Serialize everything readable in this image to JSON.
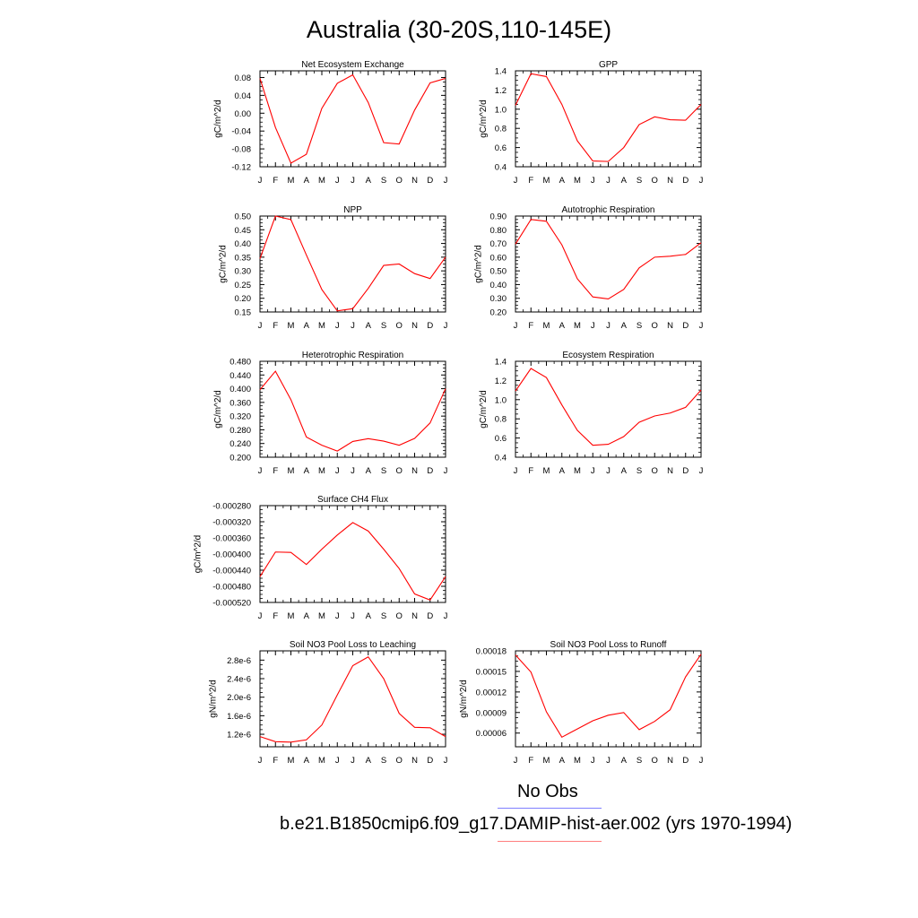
{
  "figure": {
    "title": "Australia (30-20S,110-145E)"
  },
  "legend": {
    "obs_label": "No Obs",
    "obs_color": "#7f7fff",
    "model_label": "b.e21.B1850cmip6.f09_g17.DAMIP-hist-aer.002 (yrs 1970-1994)",
    "model_color": "#ff7f7f"
  },
  "chart_data": [
    {
      "type": "line",
      "title": "Net Ecosystem Exchange",
      "ylabel": "gC/m^2/d",
      "x": [
        "J",
        "F",
        "M",
        "A",
        "M",
        "J",
        "J",
        "A",
        "S",
        "O",
        "N",
        "D",
        "J"
      ],
      "ylim": [
        -0.12,
        0.095
      ],
      "yticks": [
        -0.12,
        -0.08,
        -0.04,
        0.0,
        0.04,
        0.08
      ],
      "ytick_labels": [
        "-0.12",
        "-0.08",
        "-0.04",
        "0.00",
        "0.04",
        "0.08"
      ],
      "series": [
        {
          "color": "#ff0000",
          "values": [
            0.078,
            -0.032,
            -0.112,
            -0.092,
            0.011,
            0.067,
            0.086,
            0.024,
            -0.066,
            -0.069,
            0.007,
            0.068,
            0.078
          ]
        }
      ]
    },
    {
      "type": "line",
      "title": "GPP",
      "ylabel": "gC/m^2/d",
      "x": [
        "J",
        "F",
        "M",
        "A",
        "M",
        "J",
        "J",
        "A",
        "S",
        "O",
        "N",
        "D",
        "J"
      ],
      "ylim": [
        0.4,
        1.4
      ],
      "yticks": [
        0.4,
        0.6,
        0.8,
        1.0,
        1.2,
        1.4
      ],
      "ytick_labels": [
        "0.4",
        "0.6",
        "0.8",
        "1.0",
        "1.2",
        "1.4"
      ],
      "series": [
        {
          "color": "#ff0000",
          "values": [
            1.04,
            1.37,
            1.34,
            1.05,
            0.67,
            0.46,
            0.455,
            0.6,
            0.84,
            0.92,
            0.89,
            0.885,
            1.05
          ]
        }
      ]
    },
    {
      "type": "line",
      "title": "NPP",
      "ylabel": "gC/m^2/d",
      "x": [
        "J",
        "F",
        "M",
        "A",
        "M",
        "J",
        "J",
        "A",
        "S",
        "O",
        "N",
        "D",
        "J"
      ],
      "ylim": [
        0.15,
        0.5
      ],
      "yticks": [
        0.15,
        0.2,
        0.25,
        0.3,
        0.35,
        0.4,
        0.45,
        0.5
      ],
      "ytick_labels": [
        "0.15",
        "0.20",
        "0.25",
        "0.30",
        "0.35",
        "0.40",
        "0.45",
        "0.50"
      ],
      "series": [
        {
          "color": "#ff0000",
          "values": [
            0.345,
            0.5,
            0.487,
            0.358,
            0.232,
            0.154,
            0.162,
            0.236,
            0.32,
            0.325,
            0.29,
            0.272,
            0.35
          ]
        }
      ]
    },
    {
      "type": "line",
      "title": "Autotrophic Respiration",
      "ylabel": "gC/m^2/d",
      "x": [
        "J",
        "F",
        "M",
        "A",
        "M",
        "J",
        "J",
        "A",
        "S",
        "O",
        "N",
        "D",
        "J"
      ],
      "ylim": [
        0.2,
        0.9
      ],
      "yticks": [
        0.2,
        0.3,
        0.4,
        0.5,
        0.6,
        0.7,
        0.8,
        0.9
      ],
      "ytick_labels": [
        "0.20",
        "0.30",
        "0.40",
        "0.50",
        "0.60",
        "0.70",
        "0.80",
        "0.90"
      ],
      "series": [
        {
          "color": "#ff0000",
          "values": [
            0.695,
            0.875,
            0.862,
            0.69,
            0.442,
            0.31,
            0.295,
            0.365,
            0.522,
            0.6,
            0.607,
            0.62,
            0.705
          ]
        }
      ]
    },
    {
      "type": "line",
      "title": "Heterotrophic Respiration",
      "ylabel": "gC/m^2/d",
      "x": [
        "J",
        "F",
        "M",
        "A",
        "M",
        "J",
        "J",
        "A",
        "S",
        "O",
        "N",
        "D",
        "J"
      ],
      "ylim": [
        0.2,
        0.48
      ],
      "yticks": [
        0.2,
        0.24,
        0.28,
        0.32,
        0.36,
        0.4,
        0.44,
        0.48
      ],
      "ytick_labels": [
        "0.200",
        "0.240",
        "0.280",
        "0.320",
        "0.360",
        "0.400",
        "0.440",
        "0.480"
      ],
      "series": [
        {
          "color": "#ff0000",
          "values": [
            0.397,
            0.451,
            0.368,
            0.259,
            0.235,
            0.218,
            0.246,
            0.254,
            0.247,
            0.235,
            0.255,
            0.3,
            0.4
          ]
        }
      ]
    },
    {
      "type": "line",
      "title": "Ecosystem Respiration",
      "ylabel": "gC/m^2/d",
      "x": [
        "J",
        "F",
        "M",
        "A",
        "M",
        "J",
        "J",
        "A",
        "S",
        "O",
        "N",
        "D",
        "J"
      ],
      "ylim": [
        0.4,
        1.4
      ],
      "yticks": [
        0.4,
        0.6,
        0.8,
        1.0,
        1.2,
        1.4
      ],
      "ytick_labels": [
        "0.4",
        "0.6",
        "0.8",
        "1.0",
        "1.2",
        "1.4"
      ],
      "series": [
        {
          "color": "#ff0000",
          "values": [
            1.09,
            1.325,
            1.23,
            0.945,
            0.68,
            0.525,
            0.535,
            0.615,
            0.765,
            0.83,
            0.86,
            0.92,
            1.1
          ]
        }
      ]
    },
    {
      "type": "line",
      "title": "Surface CH4 Flux",
      "ylabel": "gC/m^2/d",
      "x": [
        "J",
        "F",
        "M",
        "A",
        "M",
        "J",
        "J",
        "A",
        "S",
        "O",
        "N",
        "D",
        "J"
      ],
      "ylim": [
        -0.00052,
        -0.00028
      ],
      "yticks": [
        -0.00052,
        -0.00048,
        -0.00044,
        -0.0004,
        -0.00036,
        -0.00032,
        -0.00028
      ],
      "ytick_labels": [
        "-0.000520",
        "-0.000480",
        "-0.000440",
        "-0.000400",
        "-0.000360",
        "-0.000320",
        "-0.000280"
      ],
      "series": [
        {
          "color": "#ff0000",
          "values": [
            -0.000456,
            -0.000395,
            -0.000396,
            -0.000426,
            -0.000388,
            -0.000353,
            -0.000322,
            -0.000343,
            -0.000388,
            -0.000436,
            -0.000499,
            -0.000514,
            -0.000456
          ]
        }
      ]
    },
    {
      "type": "line",
      "title": "Soil NO3 Pool Loss to Leaching",
      "ylabel": "gN/m^2/d",
      "x": [
        "J",
        "F",
        "M",
        "A",
        "M",
        "J",
        "J",
        "A",
        "S",
        "O",
        "N",
        "D",
        "J"
      ],
      "ylim": [
        9.3e-07,
        3e-06
      ],
      "yticks": [
        1.2e-06,
        1.6e-06,
        2e-06,
        2.4e-06,
        2.8e-06
      ],
      "ytick_labels": [
        "1.2e-6",
        "1.6e-6",
        "2.0e-6",
        "2.4e-6",
        "2.8e-6"
      ],
      "series": [
        {
          "color": "#ff0000",
          "values": [
            1.15e-06,
            1.04e-06,
            1.03e-06,
            1.08e-06,
            1.4e-06,
            2.05e-06,
            2.68e-06,
            2.87e-06,
            2.4e-06,
            1.65e-06,
            1.35e-06,
            1.34e-06,
            1.15e-06
          ]
        }
      ]
    },
    {
      "type": "line",
      "title": "Soil NO3 Pool Loss to Runoff",
      "ylabel": "gN/m^2/d",
      "x": [
        "J",
        "F",
        "M",
        "A",
        "M",
        "J",
        "J",
        "A",
        "S",
        "O",
        "N",
        "D",
        "J"
      ],
      "ylim": [
        4e-05,
        0.00018
      ],
      "yticks": [
        6e-05,
        9e-05,
        0.00012,
        0.00015,
        0.00018
      ],
      "ytick_labels": [
        "0.00006",
        "0.00009",
        "0.00012",
        "0.00015",
        "0.00018"
      ],
      "series": [
        {
          "color": "#ff0000",
          "values": [
            0.000174,
            0.000149,
            9.1e-05,
            5.4e-05,
            6.6e-05,
            7.8e-05,
            8.6e-05,
            9e-05,
            6.5e-05,
            7.7e-05,
            9.4e-05,
            0.000142,
            0.000175
          ]
        }
      ]
    }
  ]
}
